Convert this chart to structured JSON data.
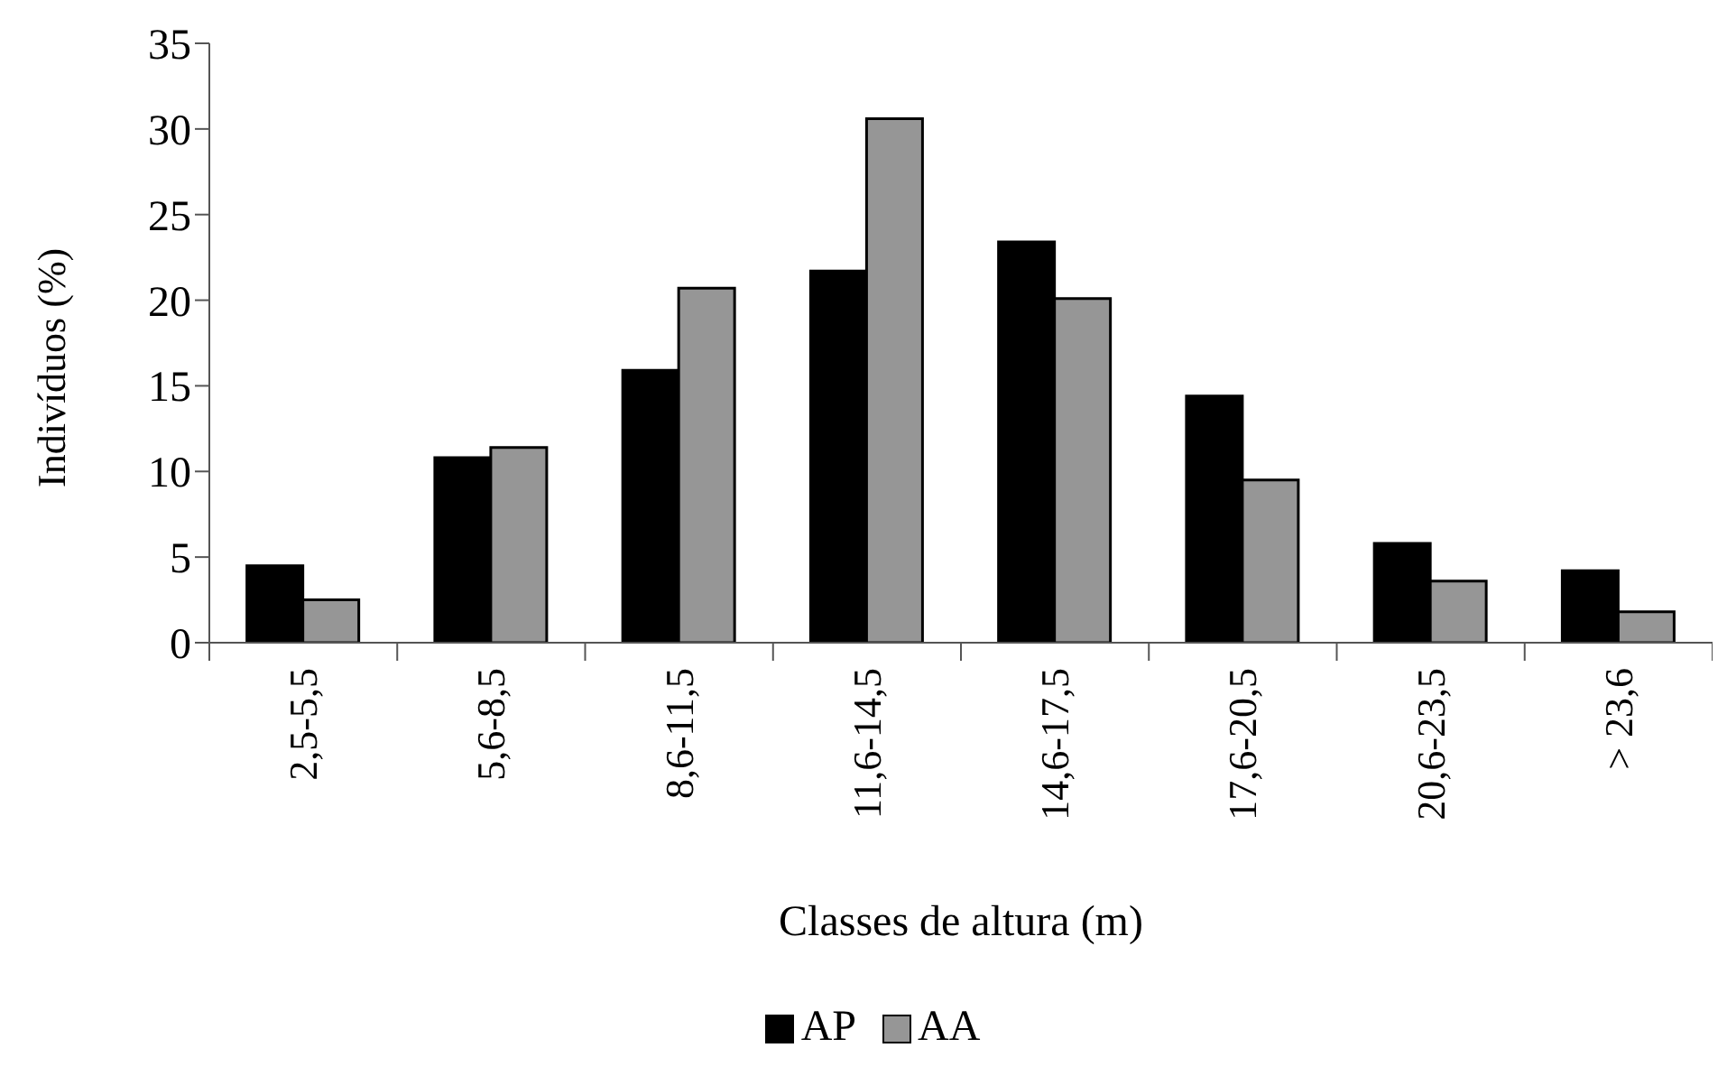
{
  "chart_data": {
    "type": "bar",
    "xlabel": "Classes de altura (m)",
    "ylabel": "Indivíduos (%)",
    "categories": [
      "2,5-5,5",
      "5,6-8,5",
      "8,6-11,5",
      "11,6-14,5",
      "14,6-17,5",
      "17,6-20,5",
      "20,6-23,5",
      "> 23,6"
    ],
    "series": [
      {
        "name": "AP",
        "color": "#000000",
        "values": [
          4.5,
          10.8,
          15.9,
          21.7,
          23.4,
          14.4,
          5.8,
          4.2
        ]
      },
      {
        "name": "AA",
        "color": "#969696",
        "values": [
          2.5,
          11.4,
          20.7,
          30.6,
          20.1,
          9.5,
          3.6,
          1.8
        ]
      }
    ],
    "ylim": [
      0,
      35
    ],
    "yticks": [
      0,
      5,
      10,
      15,
      20,
      25,
      30,
      35
    ],
    "grid": false,
    "legend": "bottom"
  }
}
